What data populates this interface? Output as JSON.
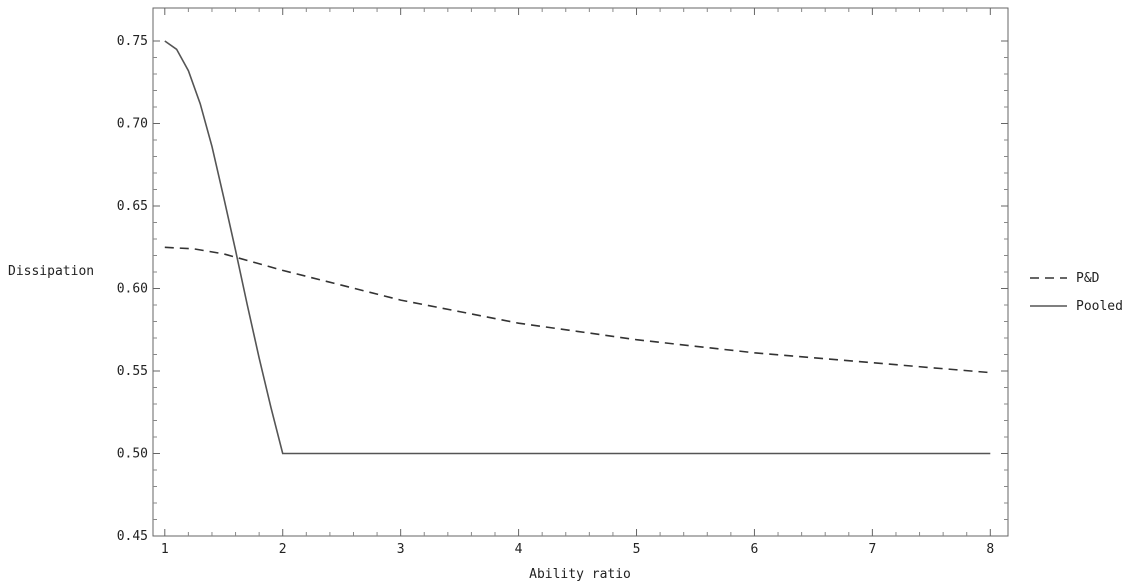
{
  "chart_data": {
    "type": "line",
    "xlabel": "Ability ratio",
    "ylabel": "Dissipation",
    "xlim": [
      0.9,
      8.15
    ],
    "ylim": [
      0.45,
      0.77
    ],
    "xticks": [
      1,
      2,
      3,
      4,
      5,
      6,
      7,
      8
    ],
    "yticks": [
      "0.45",
      "0.50",
      "0.55",
      "0.60",
      "0.65",
      "0.70",
      "0.75"
    ],
    "grid": false,
    "legend_position": "right",
    "series": [
      {
        "name": "P&D",
        "style": "dashed",
        "color": "#333333",
        "x": [
          1,
          1.25,
          1.5,
          1.75,
          2,
          2.5,
          3,
          3.5,
          4,
          4.5,
          5,
          5.5,
          6,
          6.5,
          7,
          7.5,
          8
        ],
        "y": [
          0.625,
          0.624,
          0.621,
          0.616,
          0.611,
          0.602,
          0.593,
          0.586,
          0.579,
          0.574,
          0.569,
          0.565,
          0.561,
          0.558,
          0.555,
          0.552,
          0.549
        ]
      },
      {
        "name": "Pooled",
        "style": "solid",
        "color": "#555555",
        "x": [
          1,
          1.1,
          1.2,
          1.3,
          1.4,
          1.5,
          1.6,
          1.7,
          1.8,
          1.9,
          2,
          3,
          4,
          5,
          6,
          7,
          8
        ],
        "y": [
          0.75,
          0.745,
          0.732,
          0.712,
          0.686,
          0.655,
          0.623,
          0.59,
          0.558,
          0.528,
          0.5,
          0.5,
          0.5,
          0.5,
          0.5,
          0.5,
          0.5
        ]
      }
    ]
  }
}
